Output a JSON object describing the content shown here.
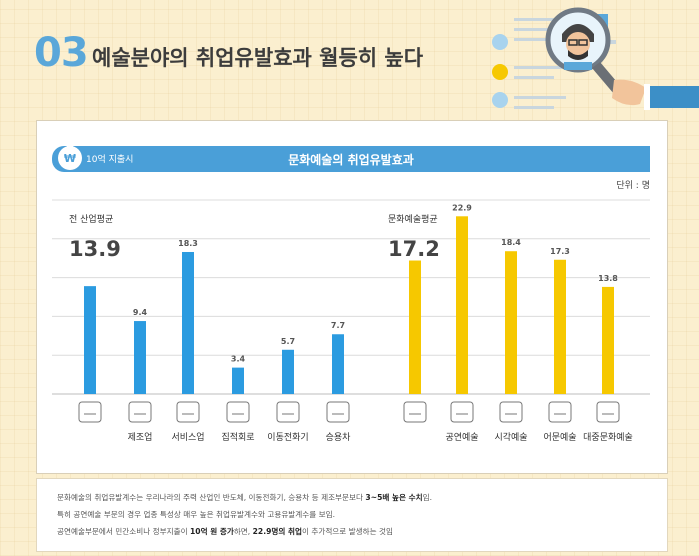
{
  "section": {
    "number": "03",
    "title": "예술분야의 취업유발효과 월등히 높다"
  },
  "panel": {
    "sub_label": "10억 지출시",
    "title": "문화예술의 취업유발효과",
    "unit": "단위 : 명"
  },
  "chart_data": {
    "type": "bar",
    "title": "문화예술의 취업유발효과",
    "unit": "단위 : 명",
    "grid": true,
    "ylim": [
      0,
      25
    ],
    "groups": [
      {
        "average_label": "전 산업평균",
        "average_value": "13.9",
        "color": "#2b9be0",
        "categories": [
          "",
          "제조업",
          "서비스업",
          "집적회로",
          "이동전화기",
          "승용차"
        ],
        "icons": [
          "factory-icon",
          "worker-icon",
          "service-staff-icon",
          "circuit-icon",
          "phone-icon",
          "car-icon"
        ],
        "values": [
          13.9,
          9.4,
          18.3,
          3.4,
          5.7,
          7.7
        ],
        "data_labels": [
          "",
          "9.4",
          "18.3",
          "3.4",
          "5.7",
          "7.7"
        ]
      },
      {
        "average_label": "문화예술평균",
        "average_value": "17.2",
        "color": "#f6c800",
        "categories": [
          "",
          "공연예술",
          "시각예술",
          "어문예술",
          "대중문화예술"
        ],
        "icons": [
          "picture-icon",
          "megaphone-icon",
          "eye-icon",
          "typewriter-icon",
          "film-camera-icon"
        ],
        "values": [
          17.2,
          22.9,
          18.4,
          17.3,
          13.8
        ],
        "data_labels": [
          "",
          "22.9",
          "18.4",
          "17.3",
          "13.8"
        ]
      }
    ]
  },
  "notes": [
    {
      "pre": "문화예술의 취업유발계수는 우리나라의 주력 산업인 반도체, 이동전화기, 승용차 등 제조부문보다 ",
      "bold": "3~5배 높은 수치",
      "post": "임."
    },
    {
      "pre": "특히 공연예술 부문의 경우 업종 특성상 매우 높은 취업유발계수와 고용유발계수를 보임.",
      "bold": "",
      "post": ""
    },
    {
      "pre": "공연예술부문에서 민간소비나 정부지출이 ",
      "bold": "10억 원 증가",
      "mid": "하면, ",
      "bold2": "22.9명의 취업",
      "post": "이 추가적으로 발생하는 것임"
    }
  ],
  "colors": {
    "accent": "#4a9fd8",
    "industry_bar": "#2b9be0",
    "culture_bar": "#f6c800"
  }
}
